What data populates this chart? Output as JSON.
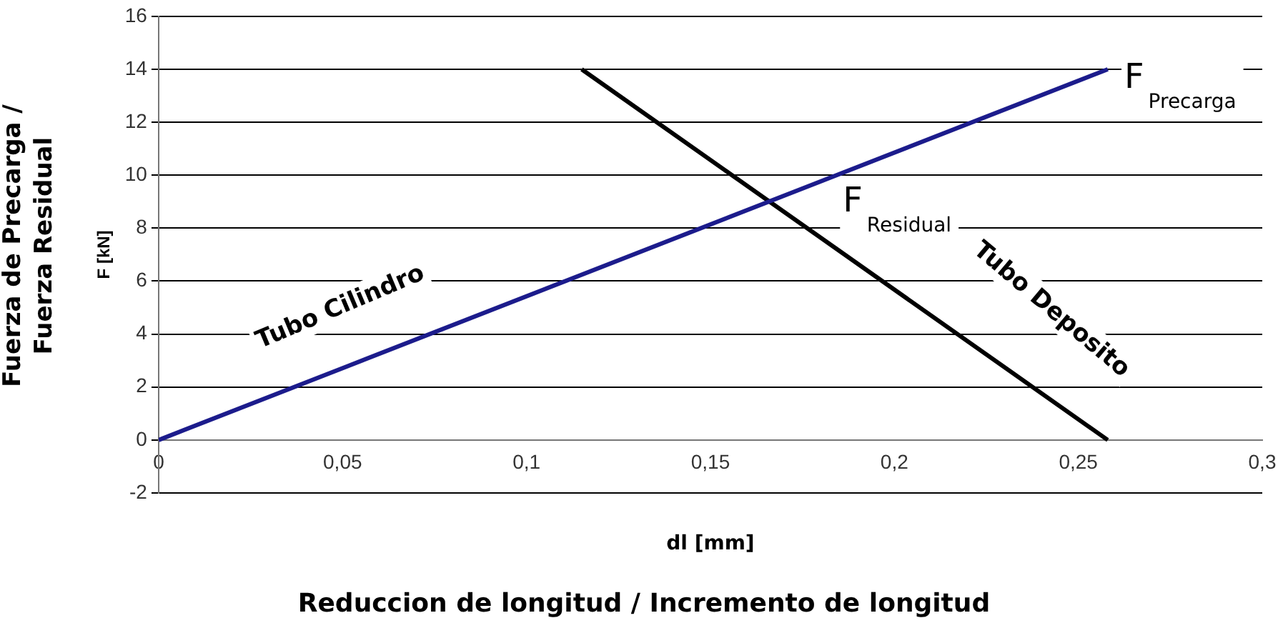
{
  "chart_data": {
    "type": "line",
    "xlabel": "dl [mm]",
    "ylabel": "F [kN]",
    "x": [
      0,
      0.258
    ],
    "series": [
      {
        "color": "#1c1c8c",
        "values": [
          0,
          14
        ]
      },
      {
        "color": "#000000",
        "x": [
          0.115,
          0.258
        ],
        "values": [
          14,
          0
        ]
      }
    ],
    "xlim": [
      0,
      0.3
    ],
    "xticks": [
      0,
      {
        "value": 0.05,
        "label": "0,05"
      },
      {
        "value": 0.1,
        "label": "0,1"
      },
      {
        "value": 0.15,
        "label": "0,15"
      },
      {
        "value": 0.2,
        "label": "0,2"
      },
      {
        "value": 0.25,
        "label": "0,25"
      },
      {
        "value": 0.3,
        "label": "0,3"
      }
    ],
    "ylim": [
      -2,
      16
    ],
    "yticks": [
      -2,
      0,
      2,
      4,
      6,
      8,
      10,
      12,
      14,
      16
    ],
    "grid": "y",
    "legend": false,
    "marker": "none",
    "line_style": "solid",
    "annotations": [
      "Tubo Cilindro",
      "Tubo Deposito",
      "F$_{Precarga}$",
      "F$_{Residual}$",
      "Fuerza de Precarga / Fuerza Residual",
      "Reduccion de longitud / Incremento de longitud"
    ]
  }
}
